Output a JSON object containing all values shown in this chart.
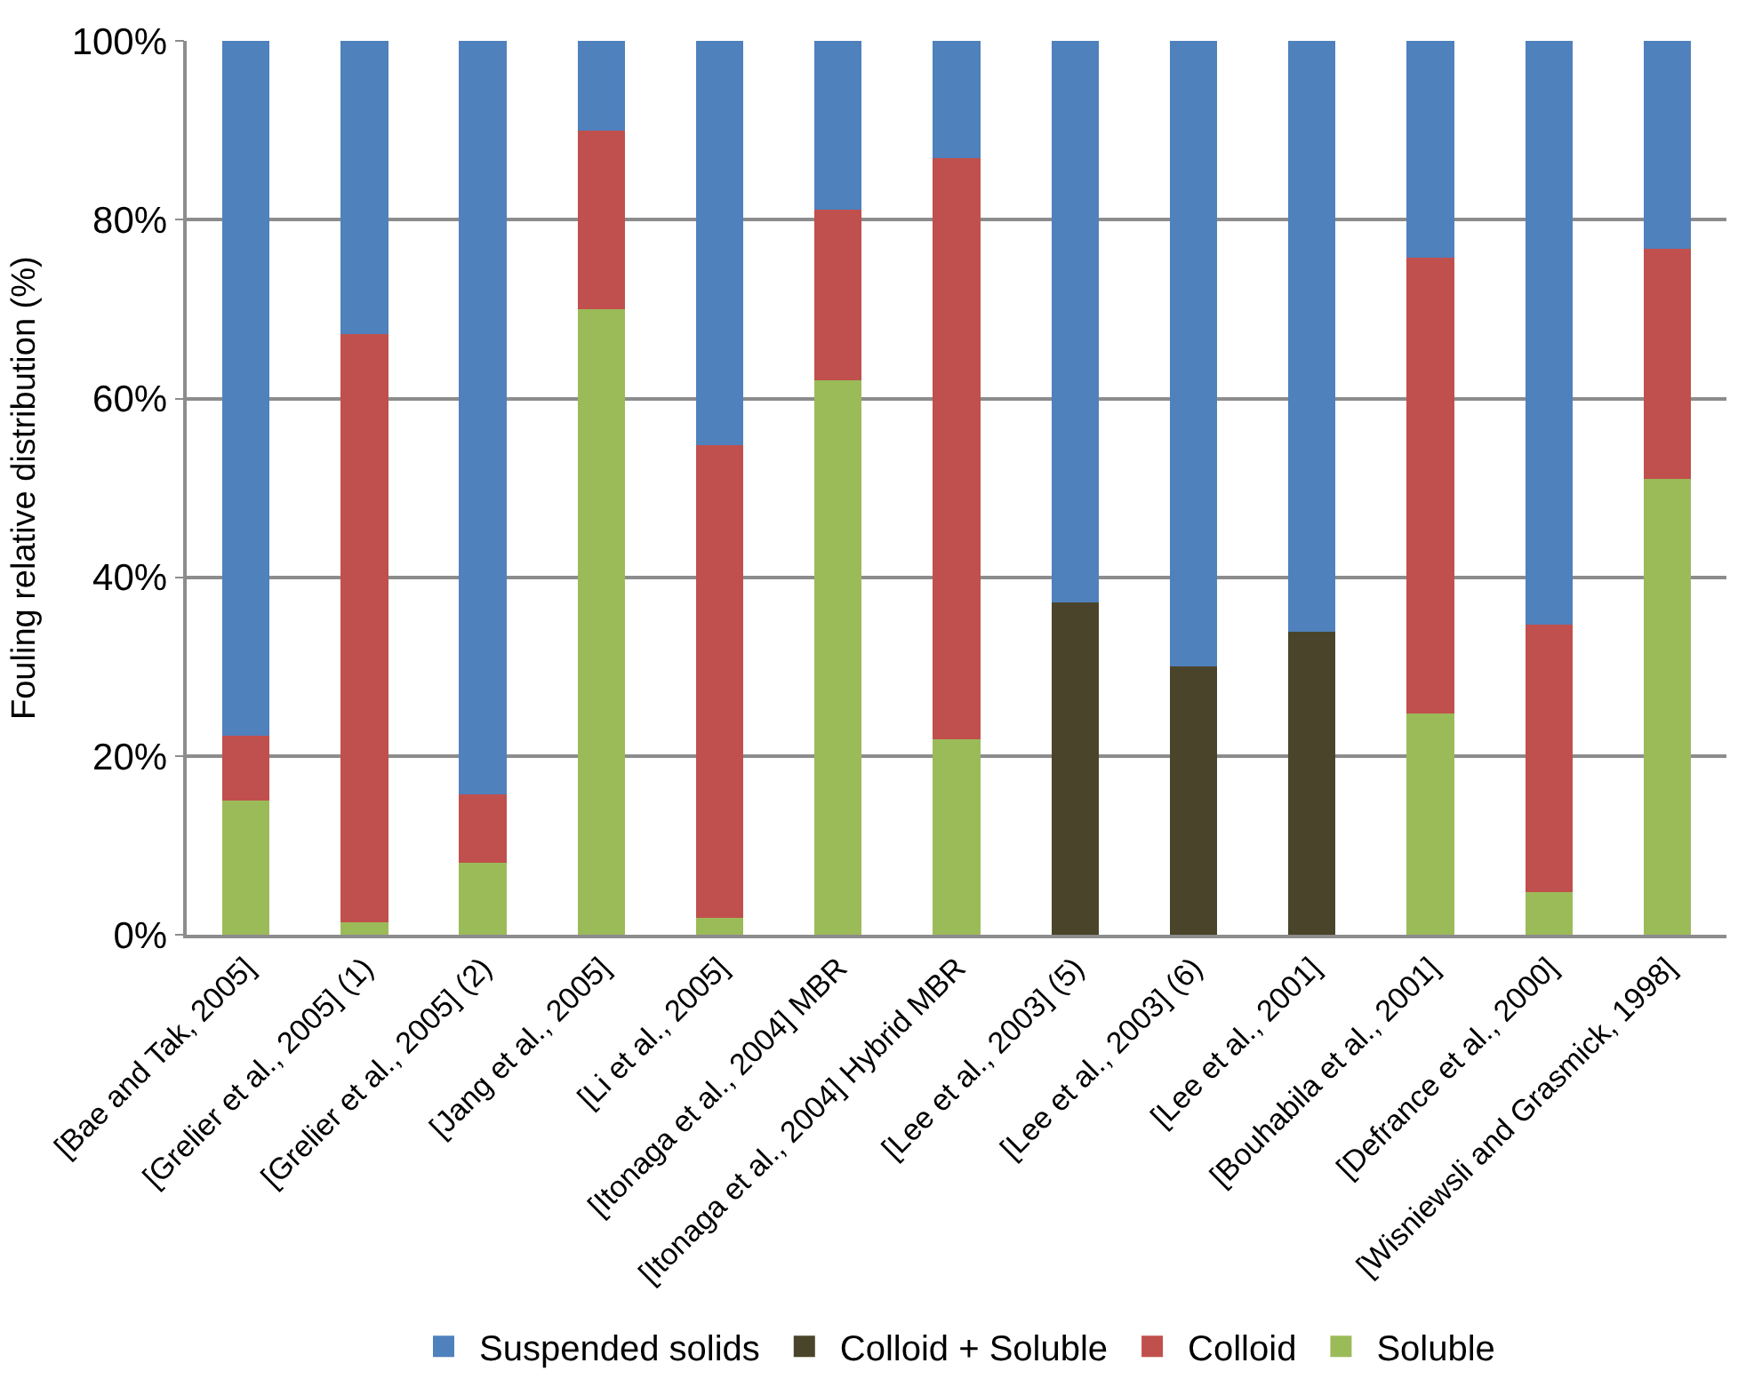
{
  "chart_data": {
    "type": "bar",
    "stacked": true,
    "ylabel": "Fouling relative distribution (%)",
    "categories": [
      "[Bae and Tak, 2005]",
      "[Grelier et al., 2005] (1)",
      "[Grelier et al., 2005] (2)",
      "[Jang et al., 2005]",
      "[Li et al., 2005]",
      "[Itonaga et al., 2004] MBR",
      "[Itonaga et al., 2004] Hybrid MBR",
      "[Lee et al., 2003] (5)",
      "[Lee et al., 2003] (6)",
      "[Lee et al., 2001]",
      "[Bouhabila et al., 2001]",
      "[Defrance et al., 2000]",
      "[Wisniewsli and Grasmick, 1998]"
    ],
    "series": [
      {
        "name": "Soluble",
        "color": "#9bbb59",
        "values": [
          15,
          1.4,
          8.1,
          70,
          1.9,
          62,
          21.9,
          null,
          null,
          null,
          24.8,
          4.8,
          51
        ]
      },
      {
        "name": "Colloid",
        "color": "#c0504d",
        "values": [
          7.3,
          65.8,
          7.6,
          20,
          52.9,
          19.1,
          65,
          null,
          null,
          null,
          51,
          29.9,
          25.7
        ]
      },
      {
        "name": "Colloid + Soluble",
        "color": "#4a452a",
        "values": [
          null,
          null,
          null,
          null,
          null,
          null,
          null,
          37.2,
          30,
          33.9,
          null,
          null,
          null
        ]
      },
      {
        "name": "Suspended solids",
        "color": "#4f81bd",
        "values": [
          77.7,
          32.8,
          84.3,
          10,
          45.2,
          18.9,
          13.1,
          62.8,
          70,
          66.1,
          24.2,
          65.3,
          23.3
        ]
      }
    ],
    "ylim": [
      0,
      100
    ],
    "yticks": [
      {
        "value": 0,
        "label": "0%"
      },
      {
        "value": 20,
        "label": "20%"
      },
      {
        "value": 40,
        "label": "40%"
      },
      {
        "value": 60,
        "label": "60%"
      },
      {
        "value": 80,
        "label": "80%"
      },
      {
        "value": 100,
        "label": "100%"
      }
    ],
    "grid": "y",
    "legend": "bottom"
  }
}
